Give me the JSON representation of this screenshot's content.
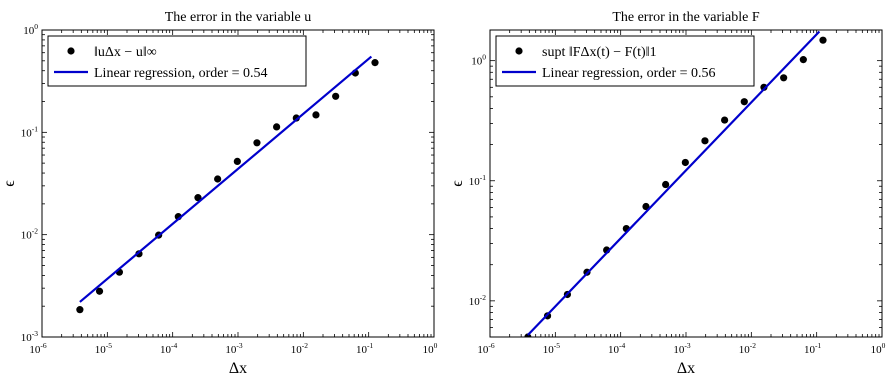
{
  "chart_data": [
    {
      "type": "scatter",
      "title": "The error in the variable u",
      "xlabel": "Δx",
      "ylabel": "ϵ",
      "xscale": "log",
      "yscale": "log",
      "xlim": [
        1e-06,
        1
      ],
      "ylim": [
        0.001,
        1
      ],
      "x_ticks": [
        "10",
        "10",
        "10",
        "10",
        "10",
        "10",
        "10"
      ],
      "x_tick_exponents": [
        "-6",
        "-5",
        "-4",
        "-3",
        "-2",
        "-1",
        "0"
      ],
      "y_ticks": [
        "10",
        "10",
        "10",
        "10"
      ],
      "y_tick_exponents": [
        "-3",
        "-2",
        "-1",
        "0"
      ],
      "legend_position": "top-left",
      "series": [
        {
          "name": "‖uΔx − u‖∞",
          "kind": "points",
          "color": "#000000",
          "x": [
            3.8e-06,
            7.6e-06,
            1.53e-05,
            3.05e-05,
            6.1e-05,
            0.000122,
            0.000244,
            0.000488,
            0.000977,
            0.00195,
            0.0039,
            0.0078,
            0.0156,
            0.03125,
            0.0625,
            0.125
          ],
          "y": [
            0.00185,
            0.0028,
            0.0043,
            0.0065,
            0.0099,
            0.015,
            0.023,
            0.035,
            0.052,
            0.079,
            0.113,
            0.138,
            0.148,
            0.225,
            0.38,
            0.48
          ]
        },
        {
          "name": "Linear regression, order = 0.54",
          "kind": "line",
          "color": "#0000cc",
          "x": [
            3.8e-06,
            0.11
          ],
          "y": [
            0.0022,
            0.55
          ]
        }
      ]
    },
    {
      "type": "scatter",
      "title": "The error in the variable F",
      "xlabel": "Δx",
      "ylabel": "ϵ",
      "xscale": "log",
      "yscale": "log",
      "xlim": [
        1e-06,
        1
      ],
      "ylim": [
        0.005,
        1.8
      ],
      "x_ticks": [
        "10",
        "10",
        "10",
        "10",
        "10",
        "10",
        "10"
      ],
      "x_tick_exponents": [
        "-6",
        "-5",
        "-4",
        "-3",
        "-2",
        "-1",
        "0"
      ],
      "y_ticks": [
        "10",
        "10",
        "10"
      ],
      "y_tick_exponents": [
        "-2",
        "-1",
        "0"
      ],
      "legend_position": "top-left",
      "series": [
        {
          "name": "supt ‖FΔx(t) − F(t)‖1",
          "kind": "points",
          "color": "#000000",
          "x": [
            3.8e-06,
            7.6e-06,
            1.53e-05,
            3.05e-05,
            6.1e-05,
            0.000122,
            0.000244,
            0.000488,
            0.000977,
            0.00195,
            0.0039,
            0.0078,
            0.0156,
            0.03125,
            0.0625,
            0.125
          ],
          "y": [
            0.005,
            0.0075,
            0.0113,
            0.0173,
            0.0265,
            0.04,
            0.061,
            0.093,
            0.142,
            0.215,
            0.32,
            0.455,
            0.6,
            0.72,
            1.02,
            1.48
          ]
        },
        {
          "name": "Linear regression, order = 0.56",
          "kind": "line",
          "color": "#0000cc",
          "x": [
            3.8e-06,
            0.11
          ],
          "y": [
            0.0052,
            1.75
          ]
        }
      ]
    }
  ]
}
